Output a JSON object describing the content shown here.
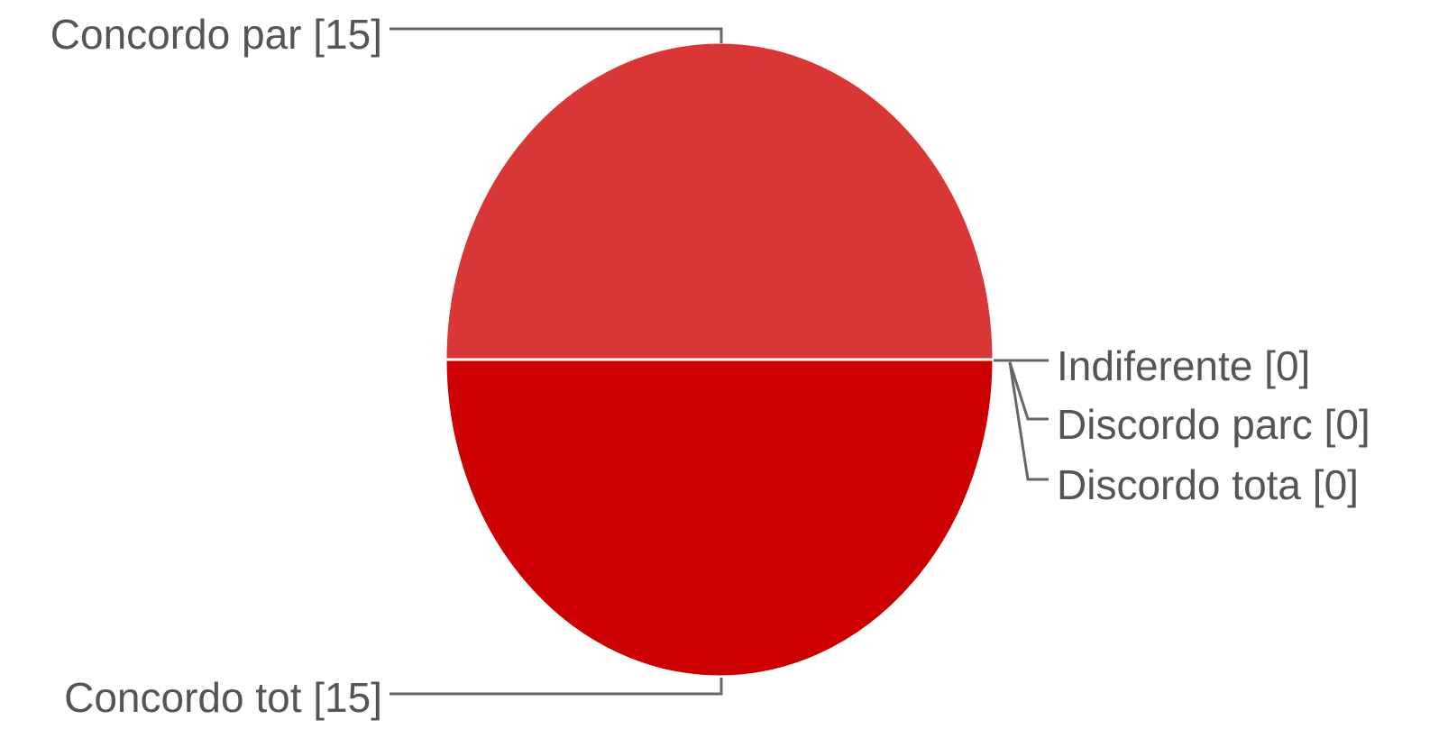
{
  "chart_data": {
    "type": "pie",
    "slices": [
      {
        "label": "Concordo tot",
        "value": 15,
        "text": "Concordo tot [15]",
        "color": "#cc0000"
      },
      {
        "label": "Concordo par",
        "value": 15,
        "text": "Concordo par [15]",
        "color": "#d93636"
      },
      {
        "label": "Indiferente",
        "value": 0,
        "text": "Indiferente [0]",
        "color": "#e06666"
      },
      {
        "label": "Discordo parc",
        "value": 0,
        "text": "Discordo parc [0]",
        "color": "#ea9999"
      },
      {
        "label": "Discordo tota",
        "value": 0,
        "text": "Discordo tota [0]",
        "color": "#f4cccc"
      }
    ]
  }
}
